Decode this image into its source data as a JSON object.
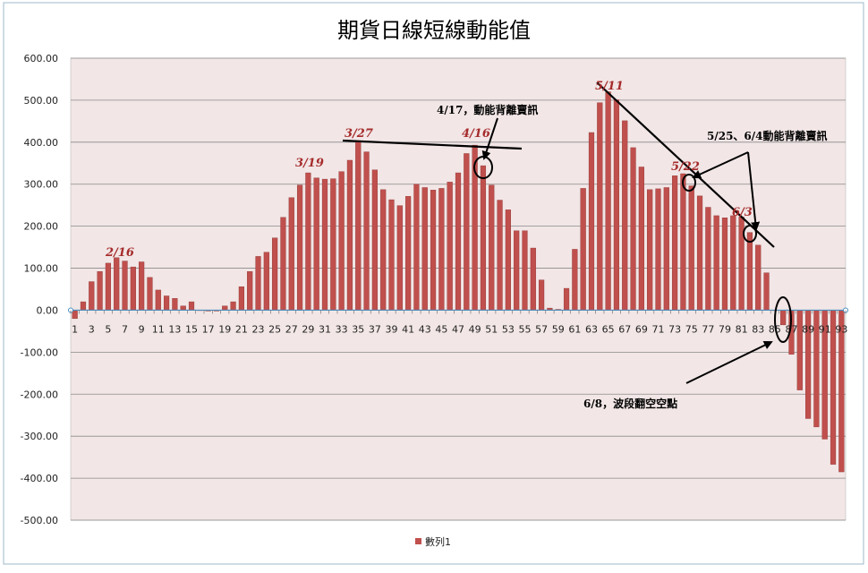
{
  "chart_data": {
    "type": "bar",
    "title": "期貨日線短線動能值",
    "xlabel": "",
    "ylabel": "",
    "ylim": [
      -500,
      600
    ],
    "y_ticks": [
      "600.00",
      "500.00",
      "400.00",
      "300.00",
      "200.00",
      "100.00",
      "0.00",
      "-100.00",
      "-200.00",
      "-300.00",
      "-400.00",
      "-500.00"
    ],
    "x_tick_labels": [
      "1",
      "3",
      "5",
      "7",
      "9",
      "11",
      "13",
      "15",
      "17",
      "19",
      "21",
      "23",
      "25",
      "27",
      "29",
      "31",
      "33",
      "35",
      "37",
      "39",
      "41",
      "43",
      "45",
      "47",
      "49",
      "51",
      "53",
      "55",
      "57",
      "59",
      "61",
      "63",
      "65",
      "67",
      "69",
      "71",
      "73",
      "75",
      "77",
      "79",
      "81",
      "83",
      "85",
      "87",
      "89",
      "91",
      "93"
    ],
    "grid": true,
    "legend_position": "bottom",
    "categories": [
      1,
      2,
      3,
      4,
      5,
      6,
      7,
      8,
      9,
      10,
      11,
      12,
      13,
      14,
      15,
      16,
      17,
      18,
      19,
      20,
      21,
      22,
      23,
      24,
      25,
      26,
      27,
      28,
      29,
      30,
      31,
      32,
      33,
      34,
      35,
      36,
      37,
      38,
      39,
      40,
      41,
      42,
      43,
      44,
      45,
      46,
      47,
      48,
      49,
      50,
      51,
      52,
      53,
      54,
      55,
      56,
      57,
      58,
      59,
      60,
      61,
      62,
      63,
      64,
      65,
      66,
      67,
      68,
      69,
      70,
      71,
      72,
      73,
      74,
      75,
      76,
      77,
      78,
      79,
      80,
      81,
      82,
      83,
      84,
      85,
      86,
      87,
      88,
      89,
      90,
      91,
      92,
      93
    ],
    "series": [
      {
        "name": "數列1",
        "color": "#c0504d",
        "values": [
          -20,
          20,
          68,
          92,
          112,
          125,
          117,
          103,
          115,
          78,
          48,
          34,
          28,
          10,
          20,
          0,
          -2,
          -2,
          10,
          20,
          56,
          92,
          128,
          138,
          172,
          221,
          268,
          298,
          327,
          315,
          312,
          313,
          330,
          357,
          402,
          377,
          334,
          287,
          263,
          249,
          271,
          300,
          292,
          286,
          290,
          305,
          327,
          373,
          393,
          344,
          298,
          262,
          239,
          189,
          189,
          148,
          72,
          5,
          2,
          52,
          145,
          290,
          423,
          494,
          520,
          501,
          451,
          387,
          341,
          287,
          289,
          292,
          320,
          325,
          296,
          272,
          245,
          225,
          220,
          225,
          222,
          185,
          155,
          89,
          0,
          -35,
          -105,
          -190,
          -258,
          -278,
          -307,
          -367,
          -385
        ]
      }
    ],
    "annotations": {
      "a1": "2/16",
      "a2": "3/19",
      "a3": "3/27",
      "a4": "4/16",
      "a5": "4/17，動能背離賣訊",
      "a6": "5/11",
      "a7": "5/22",
      "a8": "5/25、6/4動能背離賣訊",
      "a9": "6/3",
      "a10": "6/8，波段翻空空點"
    }
  }
}
